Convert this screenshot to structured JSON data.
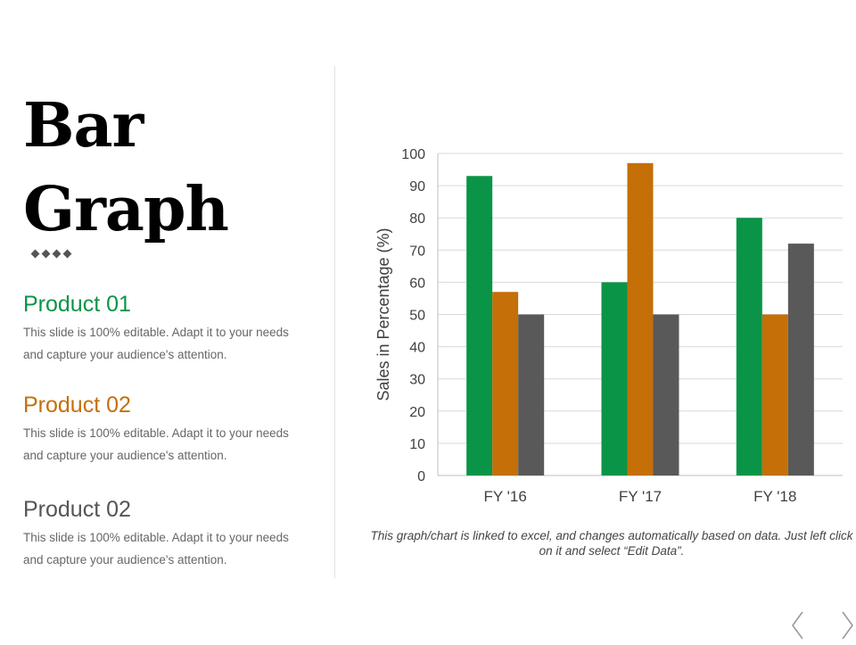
{
  "slide": {
    "title_line1": "Bar",
    "title_line2": "Graph",
    "products": [
      {
        "name": "Product 01",
        "description": "This slide is 100% editable. Adapt it to your needs and capture your audience's attention.",
        "color": "#0a9447"
      },
      {
        "name": "Product 02",
        "description": "This slide is 100% editable. Adapt it to your needs and capture your audience's attention.",
        "color": "#c46f08"
      },
      {
        "name": "Product 02",
        "description": "This slide is 100% editable. Adapt it to your needs and capture your audience's attention.",
        "color": "#555555"
      }
    ],
    "caption": "This graph/chart is linked to excel, and changes automatically based on data. Just left click on it and select “Edit Data”.",
    "nav": {
      "prev_icon": "chevron-left-icon",
      "next_icon": "chevron-right-icon"
    }
  },
  "chart_data": {
    "type": "bar",
    "categories": [
      "FY '16",
      "FY '17",
      "FY '18"
    ],
    "series": [
      {
        "values": [
          93,
          60,
          80
        ],
        "color": "#0a9447"
      },
      {
        "values": [
          57,
          97,
          50
        ],
        "color": "#c46f08"
      },
      {
        "values": [
          50,
          50,
          72
        ],
        "color": "#595959"
      }
    ],
    "ylabel": "Sales in Percentage (%)",
    "ylim": [
      0,
      100
    ],
    "yticks": [
      0,
      10,
      20,
      30,
      40,
      50,
      60,
      70,
      80,
      90,
      100
    ],
    "grid": true,
    "legend": "none"
  }
}
